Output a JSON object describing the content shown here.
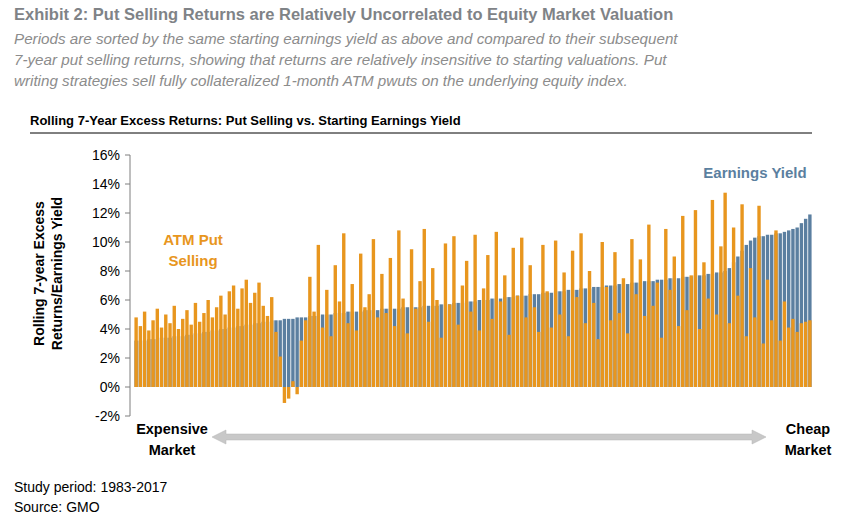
{
  "chart_data": {
    "type": "bar",
    "title": "Exhibit 2: Put Selling Returns are Relatively Uncorrelated to Equity Market Valuation",
    "subtitle": [
      "Periods are sorted by the same starting earnings yield as above and compared to their subsequent",
      "7-year put selling returns, showing that returns are relatively insensitive to starting valuations. Put",
      "writing strategies sell fully collateralized 1-month ATM pwuts on the underlying equity index."
    ],
    "plot_title": "Rolling 7-Year Excess Returns: Put Selling vs. Starting Earnings Yield",
    "y_label": "Rolling 7-year Excess Returns/Earnings Yield",
    "x_annotations": {
      "left": "Expensive Market",
      "right": "Cheap Market"
    },
    "notes": [
      "Study period: 1983-2017",
      "Source: GMO"
    ],
    "categories": [
      null,
      null,
      null,
      null,
      null,
      null,
      null,
      null,
      null,
      null,
      null,
      null,
      null,
      null,
      null,
      null,
      null,
      null,
      null,
      null,
      null,
      null,
      null,
      null,
      null,
      null,
      null,
      null,
      null,
      null,
      null,
      null,
      null,
      null,
      null,
      null,
      null,
      null,
      null,
      null,
      null,
      null,
      null,
      null,
      null,
      null,
      null,
      null,
      null,
      null,
      null,
      null,
      null,
      null,
      null,
      null,
      null,
      null,
      null,
      null,
      null,
      null,
      null,
      null,
      null,
      null,
      null,
      null,
      null,
      null,
      null,
      null,
      null,
      null,
      null,
      null,
      null,
      null,
      null,
      null,
      null,
      null,
      null,
      null,
      null,
      null,
      null,
      null,
      null,
      null,
      null,
      null,
      null,
      null,
      null,
      null,
      null,
      null,
      null,
      null,
      null,
      null,
      null,
      null,
      null,
      null,
      null,
      null,
      null,
      null,
      null,
      null,
      null,
      null,
      null,
      null,
      null,
      null,
      null,
      null,
      null,
      null,
      null,
      null,
      null,
      null,
      null,
      null,
      null,
      null,
      null,
      null,
      null,
      null,
      null,
      null,
      null,
      null,
      null,
      null,
      null,
      null,
      null,
      null,
      null,
      null,
      null,
      null,
      null,
      null,
      null,
      null,
      null,
      null,
      null,
      null,
      null,
      null,
      null,
      null
    ],
    "series": [
      {
        "name": "Earnings Yield",
        "color": "#5b7fa0",
        "values": [
          3.2,
          3.2,
          3.2,
          3.3,
          3.3,
          3.3,
          3.4,
          3.4,
          3.4,
          3.5,
          3.5,
          3.5,
          3.6,
          3.6,
          3.7,
          3.7,
          3.8,
          3.8,
          3.9,
          3.9,
          4.0,
          4.0,
          4.1,
          4.1,
          4.2,
          4.2,
          4.3,
          4.3,
          4.4,
          4.4,
          4.5,
          4.5,
          4.6,
          4.6,
          4.6,
          4.7,
          4.7,
          4.7,
          4.8,
          4.8,
          4.8,
          4.9,
          4.9,
          4.9,
          5.0,
          5.0,
          5.0,
          5.1,
          5.1,
          5.1,
          5.2,
          5.2,
          5.2,
          5.2,
          5.3,
          5.3,
          5.3,
          5.3,
          5.4,
          5.4,
          5.4,
          5.4,
          5.4,
          5.5,
          5.5,
          5.5,
          5.5,
          5.5,
          5.6,
          5.6,
          5.6,
          5.6,
          5.7,
          5.7,
          5.7,
          5.8,
          5.8,
          5.8,
          5.9,
          5.9,
          5.9,
          6.0,
          6.0,
          6.0,
          6.1,
          6.1,
          6.1,
          6.2,
          6.2,
          6.2,
          6.3,
          6.3,
          6.3,
          6.4,
          6.4,
          6.4,
          6.5,
          6.5,
          6.5,
          6.6,
          6.6,
          6.6,
          6.7,
          6.7,
          6.7,
          6.8,
          6.8,
          6.8,
          6.9,
          6.9,
          6.9,
          7.0,
          7.0,
          7.0,
          7.1,
          7.1,
          7.1,
          7.2,
          7.2,
          7.2,
          7.3,
          7.3,
          7.3,
          7.4,
          7.4,
          7.4,
          7.5,
          7.5,
          7.5,
          7.6,
          7.6,
          7.6,
          7.7,
          7.7,
          7.7,
          7.8,
          7.8,
          7.9,
          7.9,
          8.0,
          8.2,
          8.6,
          9.0,
          9.4,
          9.8,
          10.1,
          10.3,
          10.4,
          10.4,
          10.5,
          10.5,
          10.6,
          10.6,
          10.7,
          10.8,
          10.9,
          11.0,
          11.3,
          11.6,
          11.9
        ]
      },
      {
        "name": "ATM Put Selling",
        "color": "#e8961e",
        "values": [
          4.8,
          4.2,
          5.2,
          3.9,
          4.6,
          5.4,
          4.1,
          5.0,
          4.4,
          5.6,
          4.0,
          4.7,
          5.3,
          4.3,
          5.8,
          4.5,
          5.1,
          6.0,
          4.8,
          5.5,
          6.3,
          5.0,
          6.6,
          7.0,
          5.4,
          6.8,
          7.4,
          5.8,
          6.5,
          7.2,
          5.6,
          4.9,
          6.2,
          3.8,
          2.1,
          -1.1,
          -0.8,
          0.4,
          -0.5,
          3.2,
          4.6,
          7.6,
          5.2,
          9.8,
          4.1,
          6.7,
          3.5,
          8.4,
          5.9,
          10.6,
          4.4,
          7.1,
          3.9,
          9.2,
          5.5,
          6.4,
          10.2,
          4.8,
          7.8,
          5.1,
          8.9,
          4.2,
          10.8,
          6.1,
          3.7,
          9.5,
          5.4,
          7.3,
          10.9,
          4.5,
          8.2,
          6.0,
          3.4,
          9.9,
          5.7,
          10.4,
          4.3,
          7.0,
          8.7,
          5.2,
          10.5,
          3.9,
          6.8,
          9.1,
          4.7,
          10.7,
          5.9,
          7.7,
          3.6,
          9.6,
          6.3,
          10.3,
          4.8,
          8.4,
          5.5,
          3.8,
          9.8,
          6.6,
          4.1,
          10.1,
          5.0,
          7.9,
          3.5,
          9.4,
          6.2,
          10.6,
          4.4,
          8.0,
          5.8,
          3.3,
          10.0,
          6.9,
          4.6,
          9.3,
          5.1,
          7.5,
          3.7,
          10.2,
          6.4,
          8.8,
          4.9,
          11.2,
          5.6,
          7.2,
          3.4,
          10.9,
          6.7,
          9.0,
          4.2,
          11.8,
          5.3,
          7.7,
          12.2,
          4.0,
          8.6,
          6.1,
          12.9,
          5.0,
          9.7,
          13.4,
          4.4,
          11.0,
          6.3,
          12.6,
          3.5,
          8.2,
          4.8,
          12.5,
          3.0,
          7.4,
          4.6,
          10.8,
          3.2,
          5.9,
          4.1,
          4.7,
          3.8,
          4.4,
          4.5,
          4.6
        ]
      }
    ],
    "ylim": [
      -2,
      16
    ],
    "yticks": [
      {
        "value": -2,
        "label": "-2%"
      },
      {
        "value": 0,
        "label": "0%"
      },
      {
        "value": 2,
        "label": "2%"
      },
      {
        "value": 4,
        "label": "4%"
      },
      {
        "value": 6,
        "label": "6%"
      },
      {
        "value": 8,
        "label": "8%"
      },
      {
        "value": 10,
        "label": "10%"
      },
      {
        "value": 12,
        "label": "12%"
      },
      {
        "value": 14,
        "label": "14%"
      },
      {
        "value": 16,
        "label": "16%"
      }
    ],
    "grid": false,
    "tick_labels": "y"
  }
}
